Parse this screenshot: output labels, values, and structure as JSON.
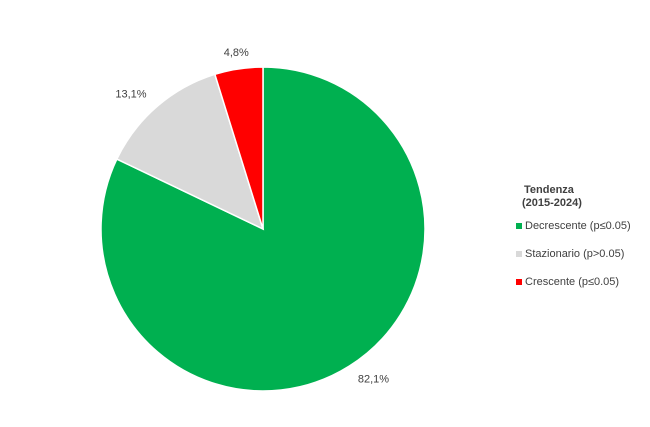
{
  "chart_data": {
    "type": "pie",
    "legend_title": [
      "Tendenza",
      "(2015-2024)"
    ],
    "categories": [
      "Decrescente (p≤0.05)",
      "Stazionario (p>0.05)",
      "Crescente (p≤0.05)"
    ],
    "values": [
      82.1,
      13.1,
      4.8
    ],
    "value_labels": [
      "82,1%",
      "13,1%",
      "4,8%"
    ],
    "colors": [
      "#00b050",
      "#d9d9d9",
      "#ff0000"
    ],
    "legend": "right"
  }
}
